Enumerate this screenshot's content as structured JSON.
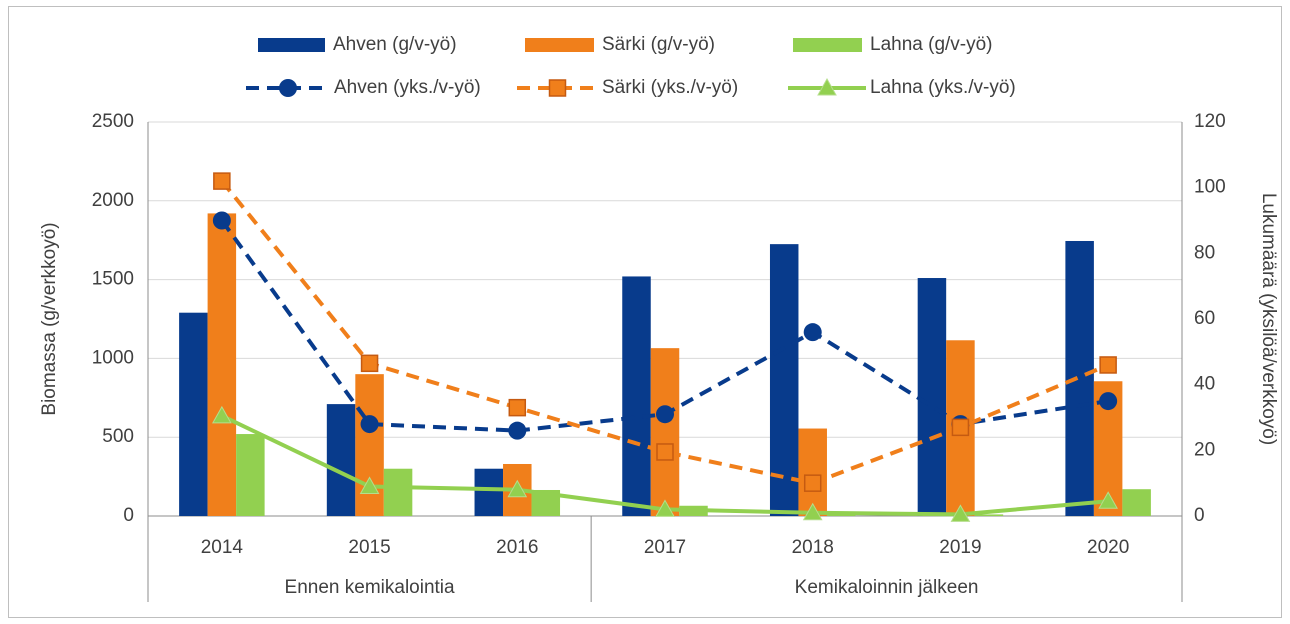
{
  "chart_data": {
    "type": "bar",
    "y_label": "Biomassa (g/verkkoyö)",
    "y2_label": "Lukumäärä (yksilöä/verkkoyö)",
    "categories": [
      "2014",
      "2015",
      "2016",
      "2017",
      "2018",
      "2019",
      "2020"
    ],
    "groups": [
      {
        "label": "Ennen kemikalointia",
        "span": 3
      },
      {
        "label": "Kemikaloinnin jälkeen",
        "span": 4
      }
    ],
    "series": [
      {
        "name": "Ahven (g/v-yö)",
        "color": "#083b8c",
        "kind": "bar",
        "axis": "y",
        "values": [
          1290,
          710,
          300,
          1520,
          1725,
          1510,
          1745
        ]
      },
      {
        "name": "Särki (g/v-yö)",
        "color": "#f07f1b",
        "kind": "bar",
        "axis": "y",
        "values": [
          1920,
          900,
          330,
          1065,
          555,
          1115,
          855
        ]
      },
      {
        "name": "Lahna (g/v-yö)",
        "color": "#92d050",
        "kind": "bar",
        "axis": "y",
        "values": [
          520,
          300,
          165,
          65,
          15,
          10,
          170
        ]
      },
      {
        "name": "Ahven (yks./v-yö)",
        "color": "#083b8c",
        "kind": "line",
        "dash": true,
        "marker": "circle",
        "axis": "y2",
        "values": [
          90,
          28,
          26,
          31,
          56,
          28,
          35
        ]
      },
      {
        "name": "Särki (yks./v-yö)",
        "color": "#f07f1b",
        "kind": "line",
        "dash": true,
        "marker": "square",
        "axis": "y2",
        "values": [
          102,
          46.5,
          33,
          19.5,
          10,
          27,
          46
        ]
      },
      {
        "name": "Lahna (yks./v-yö)",
        "color": "#92d050",
        "kind": "line",
        "dash": false,
        "marker": "triangle",
        "axis": "y2",
        "values": [
          30.5,
          9,
          8,
          2,
          1,
          0.5,
          4.5
        ]
      }
    ],
    "ylim": [
      0,
      2500
    ],
    "yticks": [
      0,
      500,
      1000,
      1500,
      2000,
      2500
    ],
    "y2lim": [
      0,
      120
    ],
    "y2ticks": [
      0,
      20,
      40,
      60,
      80,
      100,
      120
    ],
    "grid": true
  }
}
